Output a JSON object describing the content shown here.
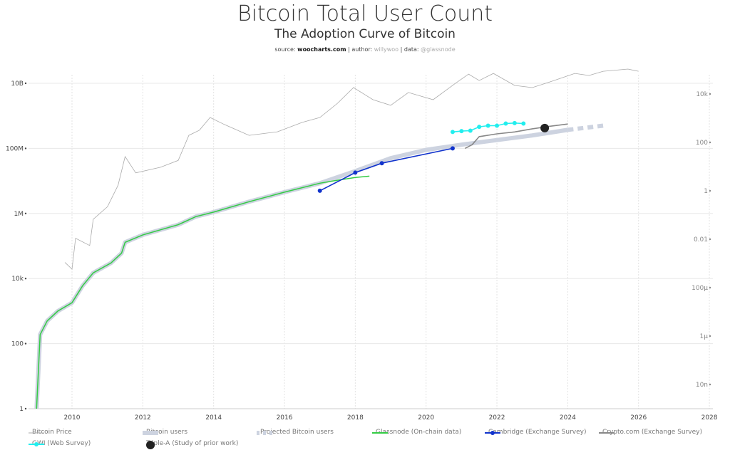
{
  "title": "Bitcoin Total User Count",
  "subtitle": "The Adoption Curve of Bitcoin",
  "source": {
    "source_label": "source:",
    "source_value": "woocharts.com",
    "author_label": "| author:",
    "author_value": "willywoo",
    "data_label": "| data:",
    "data_value": "@glassnode"
  },
  "chart_data": {
    "type": "line",
    "title": "Bitcoin Total User Count",
    "subtitle": "The Adoption Curve of Bitcoin",
    "x_axis": {
      "type": "date",
      "range": [
        2008,
        2028
      ],
      "ticks": [
        "2010",
        "2012",
        "2014",
        "2016",
        "2018",
        "2020",
        "2022",
        "2024",
        "2026",
        "2028"
      ]
    },
    "y_axis_left": {
      "type": "log",
      "range": [
        1,
        30000000000
      ],
      "ticks": [
        {
          "v": 1,
          "label": "1"
        },
        {
          "v": 100,
          "label": "100"
        },
        {
          "v": 10000,
          "label": "10k"
        },
        {
          "v": 1000000,
          "label": "1M"
        },
        {
          "v": 100000000,
          "label": "100M"
        },
        {
          "v": 10000000000,
          "label": "10B"
        }
      ]
    },
    "y_axis_right": {
      "type": "log",
      "ticks": [
        {
          "v": 10000,
          "label": "10k"
        },
        {
          "v": 100,
          "label": "100"
        },
        {
          "v": 1,
          "label": "1"
        },
        {
          "v": 0.01,
          "label": "0.01"
        },
        {
          "v": 0.0001,
          "label": "100μ"
        },
        {
          "v": 1e-06,
          "label": "1μ"
        },
        {
          "v": 1e-08,
          "label": "10n"
        }
      ]
    },
    "grid": true,
    "legend_placement": "bottom",
    "series": [
      {
        "name": "Bitcoin Price",
        "axis": "right",
        "color": "#aaaaaa",
        "style": "thin",
        "x": [
          2009.8,
          2010.0,
          2010.1,
          2010.5,
          2010.6,
          2011.0,
          2011.3,
          2011.5,
          2011.8,
          2012.5,
          2013.0,
          2013.3,
          2013.6,
          2013.9,
          2014.3,
          2015.0,
          2015.8,
          2016.5,
          2017.0,
          2017.5,
          2017.95,
          2018.5,
          2019.0,
          2019.5,
          2020.2,
          2020.8,
          2021.2,
          2021.5,
          2021.9,
          2022.5,
          2023.0,
          2023.5,
          2024.2,
          2024.6,
          2025.0,
          2025.7,
          2026.0
        ],
        "y": [
          0.0011,
          0.00058,
          0.011,
          0.0055,
          0.067,
          0.22,
          1.7,
          26,
          5.5,
          9.4,
          18,
          196,
          320,
          1070,
          550,
          196,
          275,
          670,
          1070,
          4150,
          18400,
          5800,
          3400,
          11500,
          5800,
          25700,
          66000,
          36000,
          71000,
          22500,
          18400,
          31600,
          71000,
          58000,
          87000,
          107000,
          87000
        ]
      },
      {
        "name": "Bitcoin users",
        "axis": "left",
        "color": "#cdd3e0",
        "style": "thick",
        "x": [
          2009.0,
          2009.1,
          2009.3,
          2009.6,
          2010.0,
          2010.3,
          2010.6,
          2011.1,
          2011.4,
          2011.5,
          2012.0,
          2013.0,
          2013.5,
          2014.0,
          2015.0,
          2016.0,
          2017.0,
          2018.0,
          2019.0,
          2020.0,
          2021.0,
          2022.0,
          2023.0,
          2024.0
        ],
        "y": [
          1,
          190,
          500,
          1000,
          1800,
          6000,
          15000,
          30000,
          60000,
          130000,
          220000,
          450000,
          800000,
          1100000,
          2300000,
          4500000,
          8500000,
          20000000,
          50000000,
          90000000,
          130000000,
          180000000,
          250000000,
          370000000
        ]
      },
      {
        "name": "Projected Bitcoin users",
        "axis": "left",
        "color": "#cdd3e0",
        "style": "dashed",
        "x": [
          2024.0,
          2025.0
        ],
        "y": [
          370000000,
          500000000
        ]
      },
      {
        "name": "Glassnode (On-chain data)",
        "axis": "left",
        "color": "#33cc44",
        "style": "line",
        "x": [
          2009.0,
          2009.1,
          2009.3,
          2009.6,
          2010.0,
          2010.3,
          2010.6,
          2011.1,
          2011.4,
          2011.5,
          2012.0,
          2013.0,
          2013.5,
          2014.0,
          2015.0,
          2016.0,
          2017.0,
          2017.5,
          2018.0,
          2018.4
        ],
        "y": [
          1,
          190,
          500,
          1000,
          1800,
          6000,
          15000,
          30000,
          60000,
          130000,
          220000,
          450000,
          800000,
          1100000,
          2300000,
          4500000,
          8500000,
          10500000,
          12800000,
          14000000
        ]
      },
      {
        "name": "Cambridge (Exchange Survey)",
        "axis": "left",
        "color": "#1133cc",
        "style": "line-markers",
        "x": [
          2017.0,
          2018.0,
          2018.75,
          2020.75
        ],
        "y": [
          5000000,
          18000000,
          35000000,
          100000000
        ]
      },
      {
        "name": "Crypto.com (Exchange Survey)",
        "axis": "left",
        "color": "#888888",
        "style": "line",
        "x": [
          2021.1,
          2021.3,
          2021.5,
          2022.0,
          2022.5,
          2023.0,
          2023.5,
          2024.0
        ],
        "y": [
          100000000,
          130000000,
          230000000,
          280000000,
          320000000,
          400000000,
          480000000,
          560000000
        ]
      },
      {
        "name": "GWI (Web Survey)",
        "axis": "left",
        "color": "#22eeee",
        "style": "line-markers",
        "x": [
          2020.75,
          2021.0,
          2021.25,
          2021.5,
          2021.75,
          2022.0,
          2022.25,
          2022.5,
          2022.75
        ],
        "y": [
          320000000,
          340000000,
          350000000,
          460000000,
          500000000,
          500000000,
          580000000,
          600000000,
          580000000
        ]
      },
      {
        "name": "Triple-A (Study of prior work)",
        "axis": "left",
        "color": "#222222",
        "style": "marker",
        "x": [
          2023.35
        ],
        "y": [
          420000000
        ]
      }
    ]
  }
}
